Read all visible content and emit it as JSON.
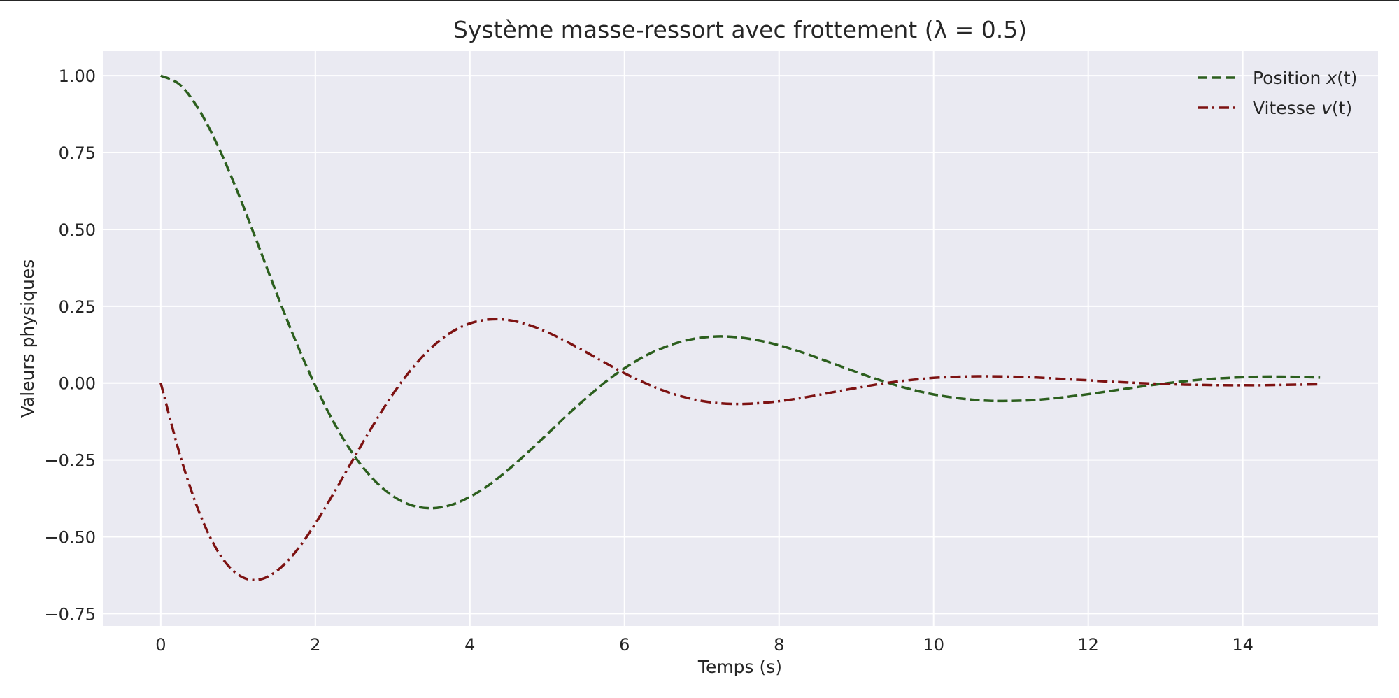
{
  "chart_data": {
    "type": "line",
    "title": "Système masse-ressort avec frottement (λ = 0.5)",
    "xlabel": "Temps (s)",
    "ylabel": "Valeurs physiques",
    "xlim": [
      -0.75,
      15.75
    ],
    "ylim": [
      -0.79,
      1.08
    ],
    "xticks": [
      0,
      2,
      4,
      6,
      8,
      10,
      12,
      14
    ],
    "xtick_labels": [
      "0",
      "2",
      "4",
      "6",
      "8",
      "10",
      "12",
      "14"
    ],
    "yticks": [
      1.0,
      0.75,
      0.5,
      0.25,
      0.0,
      -0.25,
      -0.5,
      -0.75
    ],
    "ytick_labels": [
      "1.00",
      "0.75",
      "0.50",
      "0.25",
      "0.00",
      "−0.25",
      "−0.50",
      "−0.75"
    ],
    "grid": true,
    "legend_position": "top-right",
    "background": "#eaeaf2",
    "series": [
      {
        "name": "Position x(t)",
        "legend_prefix": "Position ",
        "legend_var": "x",
        "legend_suffix": "(t)",
        "color": "#2c5f1e",
        "style": "dashed",
        "x": [
          0,
          0.25,
          0.5,
          0.75,
          1,
          1.25,
          1.5,
          1.75,
          2,
          2.25,
          2.5,
          2.75,
          3,
          3.25,
          3.5,
          3.75,
          4,
          4.25,
          4.5,
          4.75,
          5,
          5.25,
          5.5,
          5.75,
          6,
          6.25,
          6.5,
          6.75,
          7,
          7.25,
          7.5,
          7.75,
          8,
          8.25,
          8.5,
          8.75,
          9,
          9.25,
          9.5,
          9.75,
          10,
          10.25,
          10.5,
          10.75,
          11,
          11.25,
          11.5,
          11.75,
          12,
          12.25,
          12.5,
          12.75,
          13,
          13.25,
          13.5,
          13.75,
          14,
          14.25,
          14.5,
          14.75,
          15
        ],
        "y": [
          1.0,
          0.97,
          0.887,
          0.765,
          0.618,
          0.456,
          0.291,
          0.134,
          -0.009,
          -0.133,
          -0.235,
          -0.313,
          -0.367,
          -0.398,
          -0.407,
          -0.397,
          -0.37,
          -0.331,
          -0.281,
          -0.225,
          -0.166,
          -0.106,
          -0.05,
          0.003,
          0.048,
          0.086,
          0.115,
          0.136,
          0.148,
          0.152,
          0.148,
          0.138,
          0.123,
          0.104,
          0.082,
          0.059,
          0.036,
          0.014,
          -0.006,
          -0.023,
          -0.037,
          -0.047,
          -0.054,
          -0.058,
          -0.058,
          -0.056,
          -0.051,
          -0.044,
          -0.036,
          -0.027,
          -0.018,
          -0.009,
          -0.001,
          0.006,
          0.012,
          0.016,
          0.019,
          0.021,
          0.021,
          0.02,
          0.018
        ]
      },
      {
        "name": "Vitesse v(t)",
        "legend_prefix": "Vitesse ",
        "legend_var": "v",
        "legend_suffix": "(t)",
        "color": "#7d1212",
        "style": "dashdot",
        "x": [
          0,
          0.25,
          0.5,
          0.75,
          1,
          1.25,
          1.5,
          1.75,
          2,
          2.25,
          2.5,
          2.75,
          3,
          3.25,
          3.5,
          3.75,
          4,
          4.25,
          4.5,
          4.75,
          5,
          5.25,
          5.5,
          5.75,
          6,
          6.25,
          6.5,
          6.75,
          7,
          7.25,
          7.5,
          7.75,
          8,
          8.25,
          8.5,
          8.75,
          9,
          9.25,
          9.5,
          9.75,
          10,
          10.25,
          10.5,
          10.75,
          11,
          11.25,
          11.5,
          11.75,
          12,
          12.25,
          12.5,
          12.75,
          13,
          13.25,
          13.5,
          13.75,
          14,
          14.25,
          14.5,
          14.75,
          15
        ],
        "y": [
          0.0,
          -0.235,
          -0.422,
          -0.552,
          -0.623,
          -0.64,
          -0.611,
          -0.547,
          -0.457,
          -0.353,
          -0.243,
          -0.136,
          -0.037,
          0.047,
          0.115,
          0.164,
          0.194,
          0.207,
          0.205,
          0.19,
          0.166,
          0.135,
          0.101,
          0.066,
          0.032,
          0.002,
          -0.024,
          -0.044,
          -0.058,
          -0.066,
          -0.068,
          -0.065,
          -0.059,
          -0.05,
          -0.039,
          -0.027,
          -0.016,
          -0.005,
          0.004,
          0.011,
          0.017,
          0.02,
          0.022,
          0.022,
          0.021,
          0.019,
          0.016,
          0.012,
          0.009,
          0.005,
          0.002,
          -0.001,
          -0.003,
          -0.005,
          -0.006,
          -0.007,
          -0.007,
          -0.007,
          -0.006,
          -0.005,
          -0.004
        ]
      }
    ]
  }
}
